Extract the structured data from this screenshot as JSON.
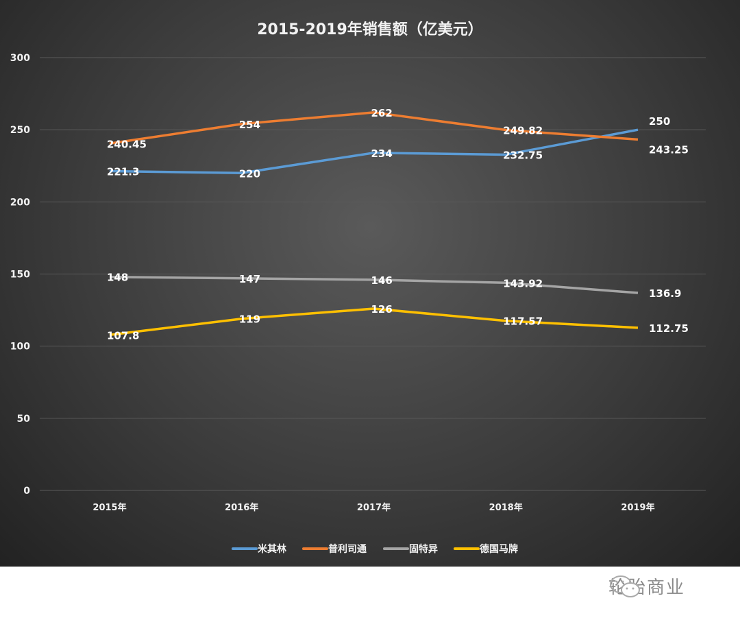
{
  "chart_data": {
    "type": "line",
    "title": "2015-2019年销售额（亿美元）",
    "categories": [
      "2015年",
      "2016年",
      "2017年",
      "2018年",
      "2019年"
    ],
    "ylim": [
      0,
      300
    ],
    "yticks": [
      0,
      50,
      100,
      150,
      200,
      250,
      300
    ],
    "grid": true,
    "legend_position": "bottom",
    "series": [
      {
        "name": "米其林",
        "color": "#5b9bd5",
        "values": [
          221.3,
          220,
          234,
          232.75,
          250
        ],
        "labels": [
          "221.3",
          "220",
          "234",
          "232.75",
          "250"
        ]
      },
      {
        "name": "普利司通",
        "color": "#ed7d31",
        "values": [
          240.45,
          254,
          262,
          249.82,
          243.25
        ],
        "labels": [
          "240.45",
          "254",
          "262",
          "249.82",
          "243.25"
        ]
      },
      {
        "name": "固特异",
        "color": "#a5a5a5",
        "values": [
          148,
          147,
          146,
          143.92,
          136.9
        ],
        "labels": [
          "148",
          "147",
          "146",
          "143.92",
          "136.9"
        ]
      },
      {
        "name": "德国马牌",
        "color": "#ffc000",
        "values": [
          107.8,
          119,
          126,
          117.57,
          112.75
        ],
        "labels": [
          "107.8",
          "119",
          "126",
          "117.57",
          "112.75"
        ]
      }
    ]
  },
  "watermark": {
    "text": "轮胎商业",
    "icon": "wechat-icon"
  }
}
